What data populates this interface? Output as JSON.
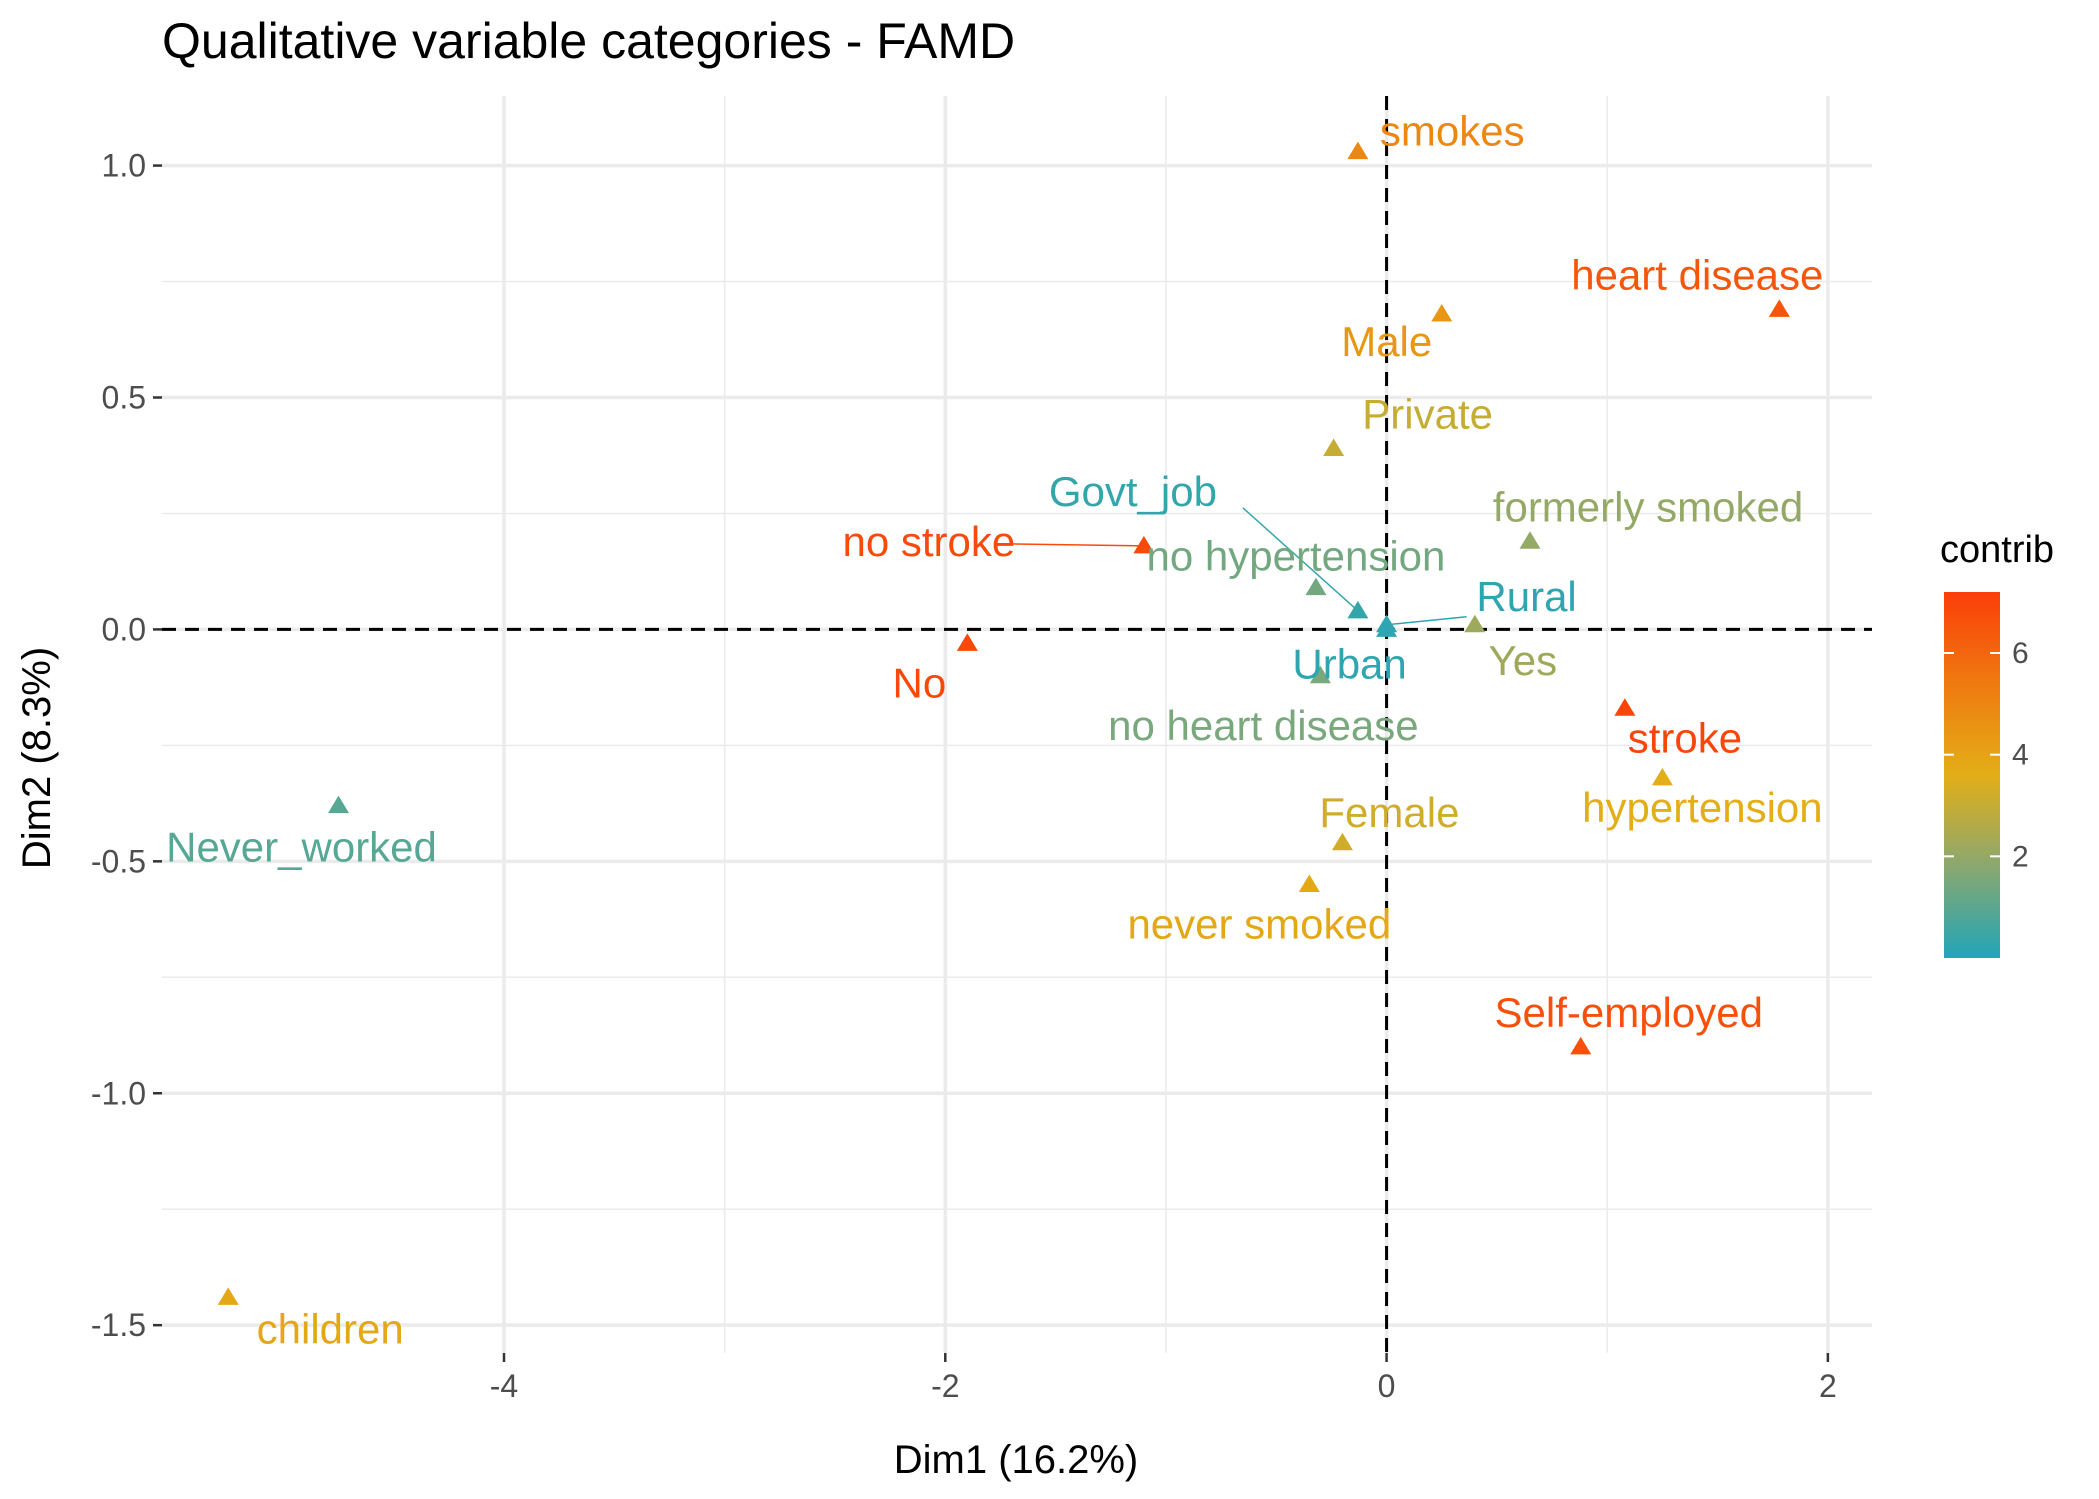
{
  "chart_data": {
    "type": "scatter",
    "title": "Qualitative variable categories - FAMD",
    "xlabel": "Dim1 (16.2%)",
    "ylabel": "Dim2 (8.3%)",
    "xlim": [
      -5.55,
      2.2
    ],
    "ylim": [
      -1.56,
      1.15
    ],
    "x_ticks": [
      -4,
      -2,
      0,
      2
    ],
    "x_tick_labels": [
      "-4",
      "-2",
      "0",
      "2"
    ],
    "y_ticks": [
      -1.5,
      -1.0,
      -0.5,
      0.0,
      0.5,
      1.0
    ],
    "y_tick_labels": [
      "-1.5",
      "-1.0",
      "-0.5",
      "0.0",
      "0.5",
      "1.0"
    ],
    "grid": true,
    "reference_lines": {
      "x": 0,
      "y": 0,
      "style": "dashed"
    },
    "marker": "triangle",
    "legend": {
      "title": "contrib",
      "placement": "right",
      "range": [
        0,
        7.2
      ],
      "ticks": [
        2,
        4,
        6
      ],
      "tick_labels": [
        "2",
        "4",
        "6"
      ],
      "colors": [
        "#22A5B8",
        "#8AA870",
        "#E3AE17",
        "#EF7A10",
        "#FB3E09"
      ]
    },
    "points": [
      {
        "label": "smokes",
        "x": -0.13,
        "y": 1.03,
        "contrib": 4.9
      },
      {
        "label": "heart disease",
        "x": 1.78,
        "y": 0.69,
        "contrib": 6.5
      },
      {
        "label": "Male",
        "x": 0.25,
        "y": 0.68,
        "contrib": 4.4
      },
      {
        "label": "Private",
        "x": -0.24,
        "y": 0.39,
        "contrib": 3.0
      },
      {
        "label": "formerly smoked",
        "x": 0.65,
        "y": 0.19,
        "contrib": 2.0
      },
      {
        "label": "Govt_job",
        "x": -0.13,
        "y": 0.04,
        "contrib": 0.3
      },
      {
        "label": "no stroke",
        "x": -1.1,
        "y": 0.18,
        "contrib": 6.8
      },
      {
        "label": "no hypertension",
        "x": -0.32,
        "y": 0.09,
        "contrib": 1.4
      },
      {
        "label": "Rural",
        "x": 0.0,
        "y": 0.01,
        "contrib": 0.2
      },
      {
        "label": "Yes",
        "x": 0.4,
        "y": 0.01,
        "contrib": 2.2
      },
      {
        "label": "No",
        "x": -1.9,
        "y": -0.03,
        "contrib": 6.9
      },
      {
        "label": "Urban",
        "x": 0.0,
        "y": 0.0,
        "contrib": 0.2
      },
      {
        "label": "no heart disease",
        "x": -0.3,
        "y": -0.1,
        "contrib": 1.5
      },
      {
        "label": "stroke",
        "x": 1.08,
        "y": -0.17,
        "contrib": 7.0
      },
      {
        "label": "hypertension",
        "x": 1.25,
        "y": -0.32,
        "contrib": 3.6
      },
      {
        "label": "Female",
        "x": -0.2,
        "y": -0.46,
        "contrib": 3.2
      },
      {
        "label": "Never_worked",
        "x": -4.75,
        "y": -0.38,
        "contrib": 0.9
      },
      {
        "label": "never smoked",
        "x": -0.35,
        "y": -0.55,
        "contrib": 3.8
      },
      {
        "label": "Self-employed",
        "x": 0.88,
        "y": -0.9,
        "contrib": 6.7
      },
      {
        "label": "children",
        "x": -5.25,
        "y": -1.44,
        "contrib": 3.8
      }
    ]
  }
}
